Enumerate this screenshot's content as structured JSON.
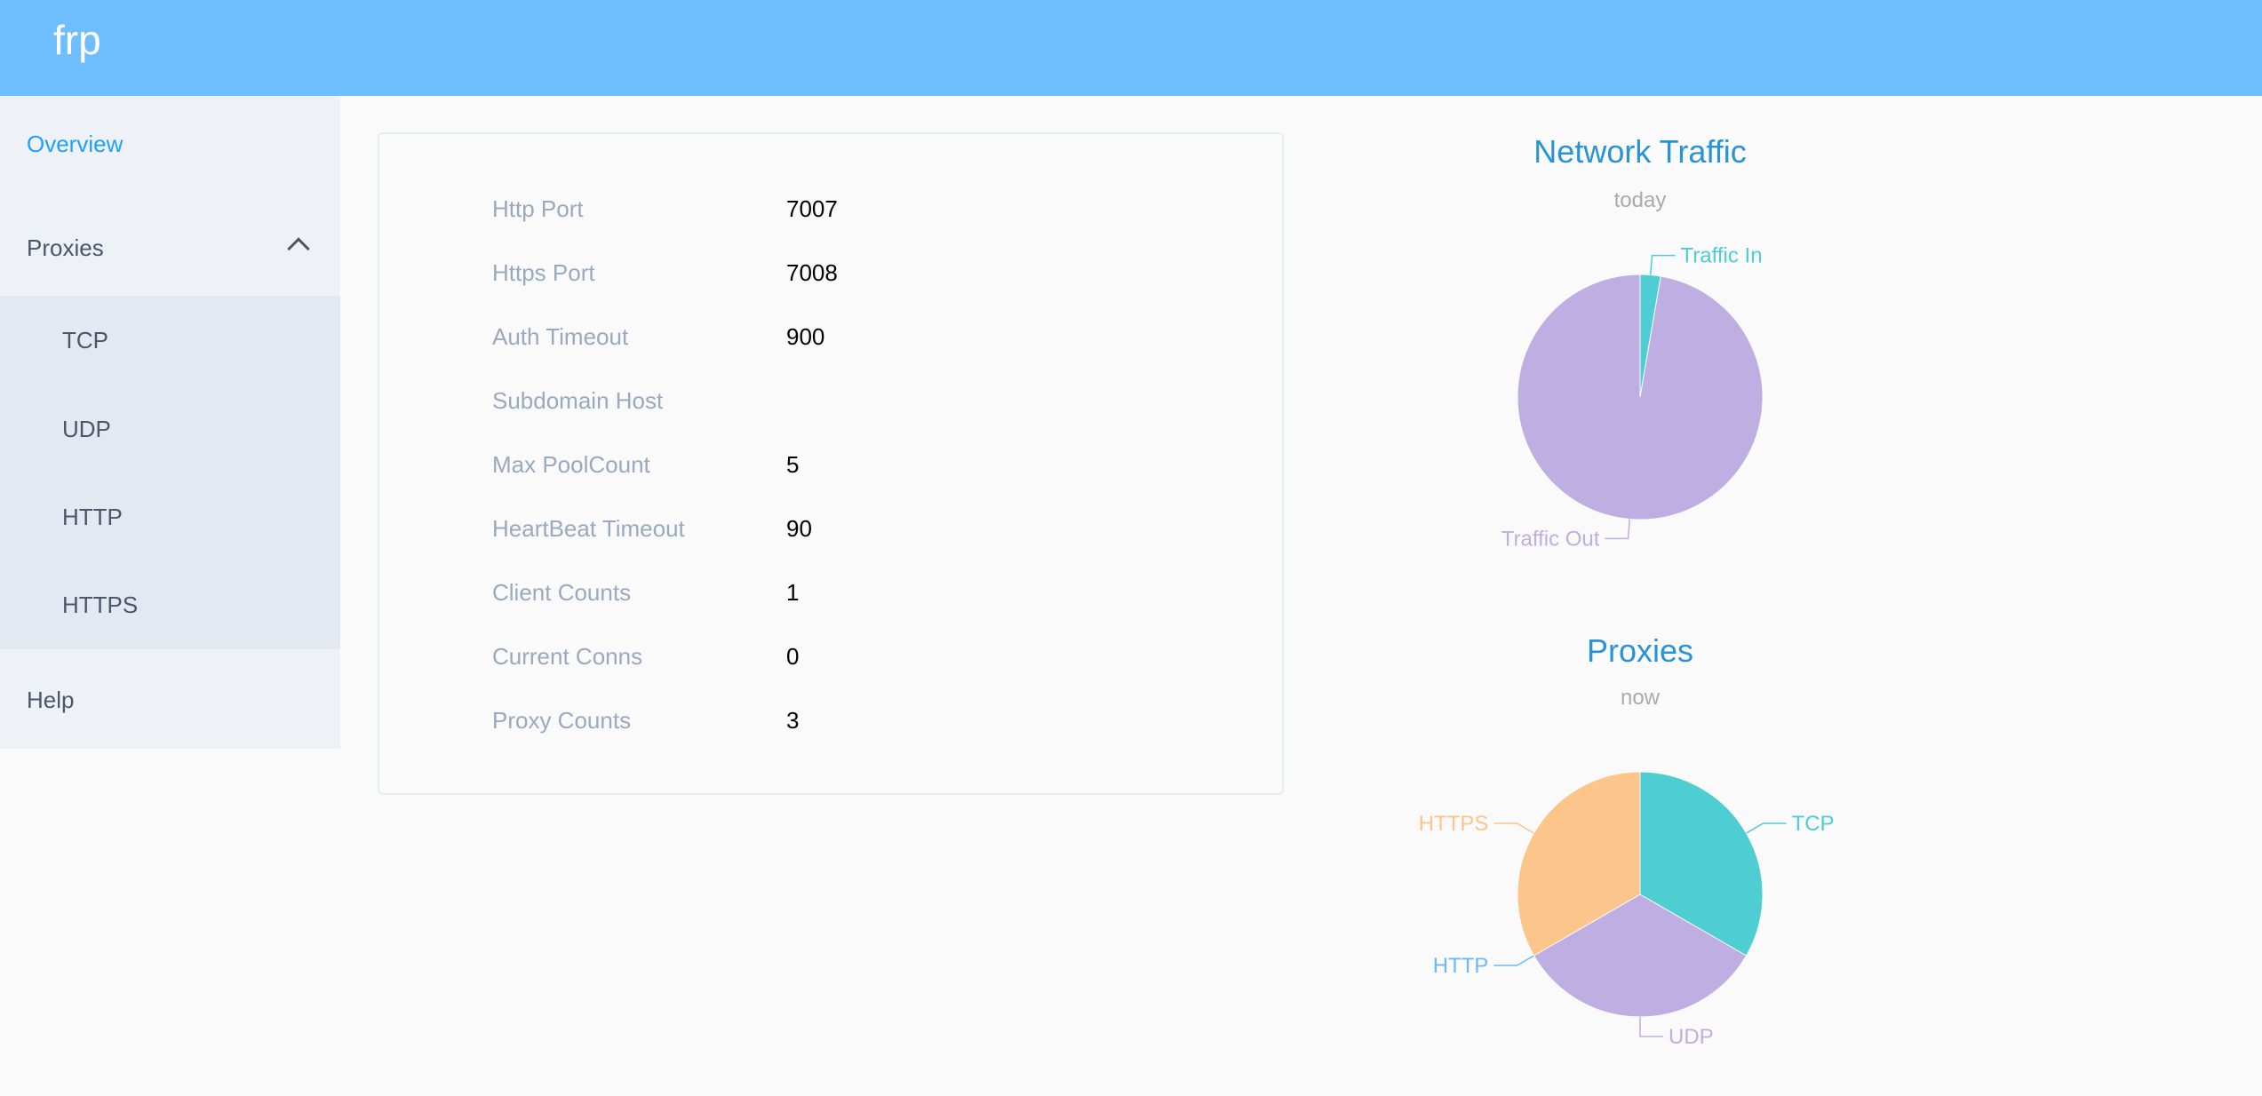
{
  "header": {
    "title": "frp"
  },
  "sidebar": {
    "overview": "Overview",
    "proxies": "Proxies",
    "proxy_items": [
      "TCP",
      "UDP",
      "HTTP",
      "HTTPS"
    ],
    "help": "Help",
    "active": "Overview"
  },
  "server_info": {
    "rows": [
      {
        "label": "Http Port",
        "value": "7007"
      },
      {
        "label": "Https Port",
        "value": "7008"
      },
      {
        "label": "Auth Timeout",
        "value": "900"
      },
      {
        "label": "Subdomain Host",
        "value": ""
      },
      {
        "label": "Max PoolCount",
        "value": "5"
      },
      {
        "label": "HeartBeat Timeout",
        "value": "90"
      },
      {
        "label": "Client Counts",
        "value": "1"
      },
      {
        "label": "Current Conns",
        "value": "0"
      },
      {
        "label": "Proxy Counts",
        "value": "3"
      }
    ]
  },
  "colors": {
    "header": "#6fbfff",
    "accent": "#20a0ff",
    "title": "#2a93d5"
  },
  "chart_data": [
    {
      "type": "pie",
      "title": "Network Traffic",
      "subtitle": "today",
      "categories": [
        "Traffic In",
        "Traffic Out"
      ],
      "values": [
        2.7,
        97.3
      ],
      "colors": [
        "#4ecdd2",
        "#bfaee2"
      ]
    },
    {
      "type": "pie",
      "title": "Proxies",
      "subtitle": "now",
      "categories": [
        "TCP",
        "UDP",
        "HTTP",
        "HTTPS"
      ],
      "values": [
        1,
        1,
        0,
        1
      ],
      "colors": [
        "#4ecdd2",
        "#bfaee2",
        "#6cb9f5",
        "#fbc58b"
      ]
    }
  ]
}
